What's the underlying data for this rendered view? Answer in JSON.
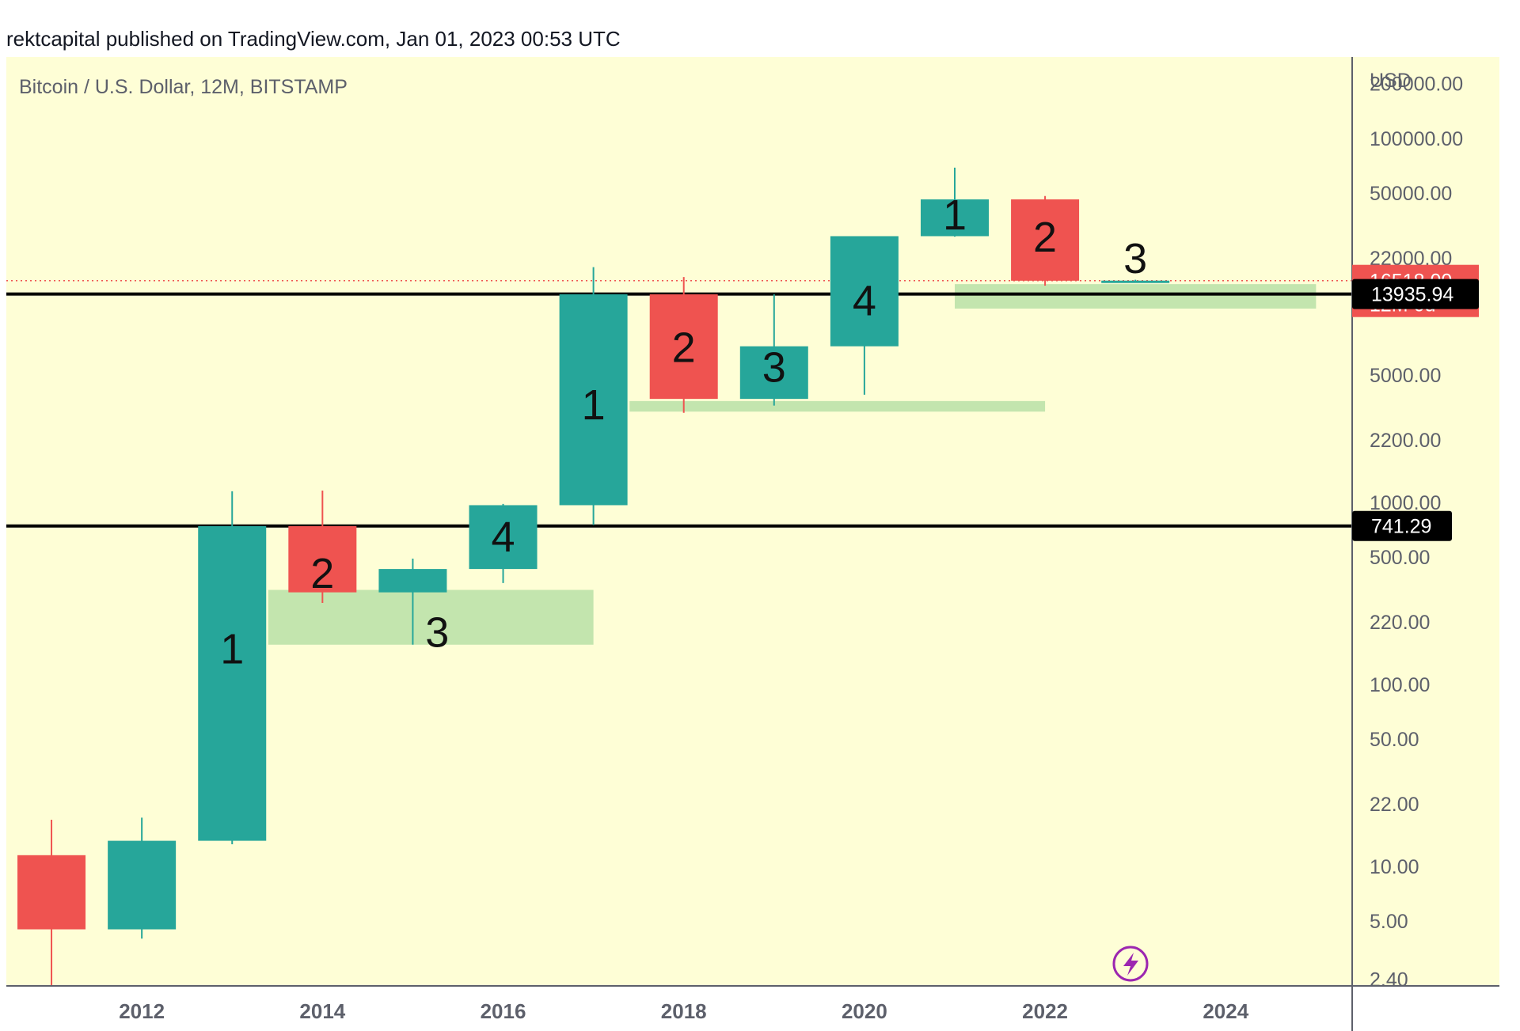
{
  "header": {
    "publisher_line": "rektcapital published on TradingView.com, Jan 01, 2023 00:53 UTC"
  },
  "colors": {
    "background": "#fefed6",
    "bull": "#26a69a",
    "bear": "#ef5350",
    "zone": "#c3e5ae",
    "level_line": "#000000"
  },
  "chart_data": {
    "type": "candlestick",
    "title": "Bitcoin / U.S. Dollar, 12M, BITSTAMP",
    "y_unit": "USD",
    "y_scale": "log",
    "ylim": [
      2.2,
      280000
    ],
    "xlim": [
      2010.5,
      2025.4
    ],
    "y_ticks": [
      200000,
      100000,
      50000,
      22000,
      5000,
      2200,
      1000,
      500,
      220,
      100,
      50,
      22,
      10,
      5,
      2.4
    ],
    "y_tick_labels": [
      "200000.00",
      "100000.00",
      "50000.00",
      "22000.00",
      "5000.00",
      "2200.00",
      "1000.00",
      "500.00",
      "220.00",
      "100.00",
      "50.00",
      "22.00",
      "10.00",
      "5.00",
      "2.40"
    ],
    "x_ticks": [
      2012,
      2014,
      2016,
      2018,
      2020,
      2022,
      2024
    ],
    "x_tick_labels": [
      "2012",
      "2014",
      "2016",
      "2018",
      "2020",
      "2022",
      "2024"
    ],
    "candles": [
      {
        "year": 2011,
        "open": 11.5,
        "high": 18,
        "low": 2.2,
        "close": 4.5
      },
      {
        "year": 2012,
        "open": 4.5,
        "high": 18.5,
        "low": 4.0,
        "close": 13.8
      },
      {
        "year": 2013,
        "open": 13.8,
        "high": 1150,
        "low": 13.2,
        "close": 740
      },
      {
        "year": 2014,
        "open": 740,
        "high": 1160,
        "low": 280,
        "close": 320
      },
      {
        "year": 2015,
        "open": 320,
        "high": 490,
        "low": 165,
        "close": 430
      },
      {
        "year": 2016,
        "open": 430,
        "high": 980,
        "low": 360,
        "close": 964
      },
      {
        "year": 2017,
        "open": 964,
        "high": 19600,
        "low": 750,
        "close": 13900
      },
      {
        "year": 2018,
        "open": 13900,
        "high": 17300,
        "low": 3100,
        "close": 3700
      },
      {
        "year": 2019,
        "open": 3700,
        "high": 13900,
        "low": 3400,
        "close": 7200
      },
      {
        "year": 2020,
        "open": 7200,
        "high": 29000,
        "low": 3900,
        "close": 29000
      },
      {
        "year": 2021,
        "open": 29000,
        "high": 69000,
        "low": 28800,
        "close": 46200
      },
      {
        "year": 2022,
        "open": 46200,
        "high": 48200,
        "low": 15500,
        "close": 16500
      },
      {
        "year": 2023,
        "open": 16500,
        "high": 16700,
        "low": 16400,
        "close": 16518
      }
    ],
    "cycle_labels": [
      {
        "year": 2013,
        "price": 150,
        "text": "1"
      },
      {
        "year": 2014,
        "price": 390,
        "text": "2"
      },
      {
        "year": 2015.27,
        "price": 185,
        "text": "3"
      },
      {
        "year": 2016,
        "price": 620,
        "text": "4"
      },
      {
        "year": 2017,
        "price": 3300,
        "text": "1"
      },
      {
        "year": 2018,
        "price": 6800,
        "text": "2"
      },
      {
        "year": 2019,
        "price": 5300,
        "text": "3"
      },
      {
        "year": 2020,
        "price": 12300,
        "text": "4"
      },
      {
        "year": 2021,
        "price": 36500,
        "text": "1"
      },
      {
        "year": 2022,
        "price": 27500,
        "text": "2"
      },
      {
        "year": 2023,
        "price": 21000,
        "text": "3"
      }
    ],
    "support_zones": [
      {
        "x1": 2013.4,
        "x2": 2017.0,
        "y_top": 330,
        "y_bottom": 165
      },
      {
        "x1": 2017.4,
        "x2": 2022.0,
        "y_top": 3600,
        "y_bottom": 3150
      },
      {
        "x1": 2021.0,
        "x2": 2025.0,
        "y_top": 15800,
        "y_bottom": 11600
      }
    ],
    "horizontal_levels": [
      {
        "price": 13935.94,
        "label": "13935.94"
      },
      {
        "price": 741.29,
        "label": "741.29"
      }
    ],
    "last_price": {
      "price": 16518.0,
      "label": "16518.00",
      "countdown": "12M 0d"
    }
  }
}
